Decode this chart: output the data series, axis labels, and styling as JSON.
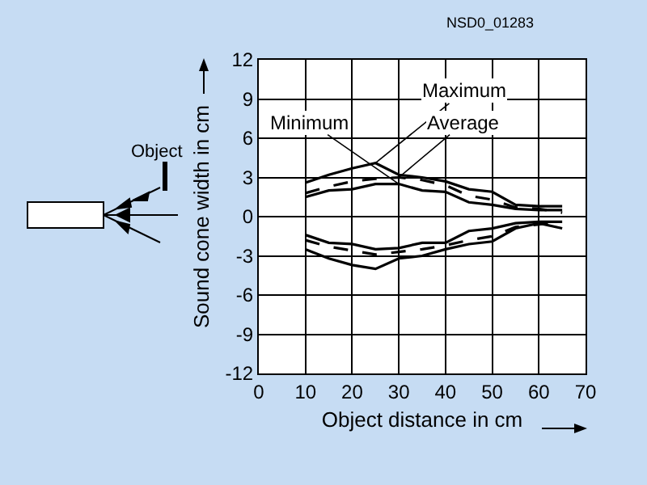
{
  "chart_data": {
    "type": "line",
    "xlabel": "Object distance in cm",
    "ylabel": "Sound cone width in cm",
    "x": [
      10,
      15,
      20,
      25,
      30,
      35,
      40,
      45,
      50,
      55,
      60,
      65
    ],
    "xlim": [
      0,
      70
    ],
    "xticks": [
      0,
      10,
      20,
      30,
      40,
      50,
      60,
      70
    ],
    "ylim": [
      -12,
      12
    ],
    "yticks": [
      -12,
      -9,
      -6,
      -3,
      0,
      3,
      6,
      9,
      12
    ],
    "grid": true,
    "legend": false,
    "series": [
      {
        "name": "Maximum",
        "color": "#000000",
        "line_style": "solid",
        "values": [
          2.6,
          3.2,
          3.7,
          4.1,
          3.2,
          3.0,
          2.7,
          2.1,
          1.9,
          0.9,
          0.8,
          0.8
        ]
      },
      {
        "name": "Average",
        "color": "#000000",
        "line_style": "dashed",
        "values": [
          1.8,
          2.3,
          2.7,
          2.9,
          3.0,
          2.8,
          2.4,
          1.6,
          1.3,
          0.7,
          0.6,
          0.3
        ]
      },
      {
        "name": "Minimum",
        "color": "#000000",
        "line_style": "solid",
        "values": [
          1.5,
          2.0,
          2.1,
          2.5,
          2.5,
          2.0,
          1.9,
          1.1,
          0.9,
          0.6,
          0.5,
          0.5
        ]
      },
      {
        "color": "#000000",
        "line_style": "solid",
        "values": [
          -2.5,
          -3.2,
          -3.7,
          -4.0,
          -3.2,
          -3.0,
          -2.5,
          -2.1,
          -1.9,
          -0.9,
          -0.5,
          -0.9
        ]
      },
      {
        "color": "#000000",
        "line_style": "dashed",
        "values": [
          -1.8,
          -2.3,
          -2.6,
          -2.9,
          -2.7,
          -2.5,
          -2.2,
          -1.8,
          -1.5,
          -0.8,
          -0.6,
          -0.3
        ]
      },
      {
        "color": "#000000",
        "line_style": "solid",
        "values": [
          -1.4,
          -2.0,
          -2.1,
          -2.5,
          -2.4,
          -2.0,
          -2.0,
          -1.1,
          -0.9,
          -0.5,
          -0.4,
          -0.4
        ]
      }
    ],
    "annotations": [
      "NSD0_01283",
      "Object"
    ]
  }
}
